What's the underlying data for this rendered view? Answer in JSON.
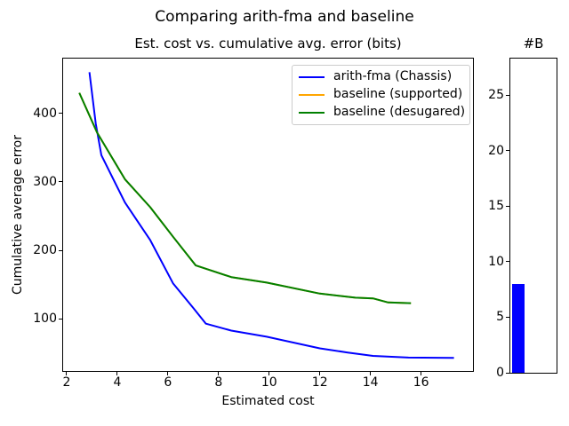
{
  "suptitle": "Comparing arith-fma and baseline",
  "chart_data": [
    {
      "type": "line",
      "title": "Est. cost vs. cumulative avg. error (bits)",
      "xlabel": "Estimated cost",
      "ylabel": "Cumulative average error",
      "xlim": [
        1.86,
        18.05
      ],
      "ylim": [
        24,
        480
      ],
      "xticks": [
        2,
        4,
        6,
        8,
        10,
        12,
        14,
        16
      ],
      "yticks": [
        100,
        200,
        300,
        400
      ],
      "grid": false,
      "legend_position": "upper right",
      "series": [
        {
          "name": "arith-fma (Chassis)",
          "color": "#0000ff",
          "points": [
            [
              2.9,
              460
            ],
            [
              3.15,
              385
            ],
            [
              3.37,
              339
            ],
            [
              4.3,
              270
            ],
            [
              5.3,
              215
            ],
            [
              6.2,
              152
            ],
            [
              7.0,
              116
            ],
            [
              7.5,
              93
            ],
            [
              8.5,
              83
            ],
            [
              9.9,
              74
            ],
            [
              12.0,
              57
            ],
            [
              13.1,
              51
            ],
            [
              14.1,
              46
            ],
            [
              15.5,
              43.5
            ],
            [
              17.3,
              43
            ]
          ]
        },
        {
          "name": "baseline (supported)",
          "color": "#ffa500",
          "points": [
            [
              2.5,
              430
            ],
            [
              3.2,
              372
            ],
            [
              4.3,
              304
            ],
            [
              5.3,
              263
            ],
            [
              6.2,
              220
            ],
            [
              7.1,
              178
            ],
            [
              8.5,
              161
            ],
            [
              9.9,
              153
            ],
            [
              12.0,
              137
            ],
            [
              13.4,
              131
            ],
            [
              14.1,
              130
            ],
            [
              14.7,
              124
            ],
            [
              15.6,
              123
            ]
          ]
        },
        {
          "name": "baseline (desugared)",
          "color": "#008000",
          "points": [
            [
              2.5,
              430
            ],
            [
              3.2,
              372
            ],
            [
              4.3,
              304
            ],
            [
              5.3,
              263
            ],
            [
              6.2,
              220
            ],
            [
              7.1,
              178
            ],
            [
              8.5,
              161
            ],
            [
              9.9,
              153
            ],
            [
              12.0,
              137
            ],
            [
              13.4,
              131
            ],
            [
              14.1,
              130
            ],
            [
              14.7,
              124
            ],
            [
              15.6,
              123
            ]
          ]
        }
      ]
    },
    {
      "type": "bar",
      "title": "#B",
      "categories": [
        ""
      ],
      "values": [
        8
      ],
      "bar_color": "#0000ff",
      "ylim": [
        0,
        28.3
      ],
      "yticks": [
        0,
        5,
        10,
        15,
        20,
        25
      ],
      "grid": false
    }
  ]
}
